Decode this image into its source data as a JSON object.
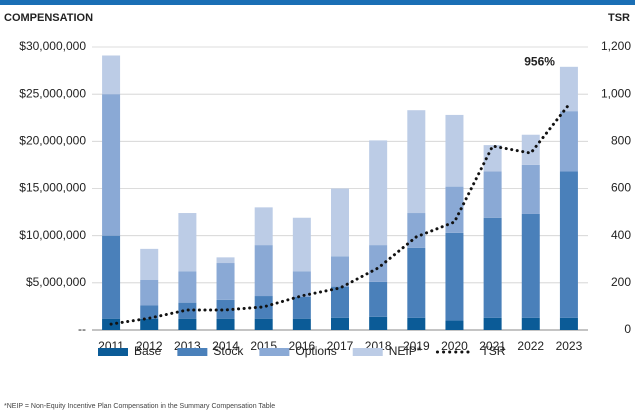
{
  "chart_data": {
    "type": "stacked_bar_line",
    "y_axis_title": "COMPENSATION",
    "y2_axis_title": "TSR",
    "categories": [
      "2011",
      "2012",
      "2013",
      "2014",
      "2015",
      "2016",
      "2017",
      "2018",
      "2019",
      "2020",
      "2021",
      "2022",
      "2023"
    ],
    "series": [
      {
        "name": "Base",
        "color": "#0b5b97",
        "values": [
          1200000,
          1200000,
          1200000,
          1200000,
          1200000,
          1200000,
          1300000,
          1400000,
          1300000,
          1000000,
          1300000,
          1300000,
          1300000
        ]
      },
      {
        "name": "Stock",
        "color": "#4a80ba",
        "values": [
          8800000,
          1400000,
          1700000,
          2000000,
          2400000,
          2300000,
          3300000,
          3700000,
          7400000,
          9300000,
          10600000,
          11000000,
          15500000
        ]
      },
      {
        "name": "Options",
        "color": "#8aa9d5",
        "values": [
          15000000,
          2700000,
          3300000,
          3900000,
          5400000,
          2700000,
          3200000,
          3900000,
          3700000,
          4900000,
          4900000,
          5200000,
          6400000
        ]
      },
      {
        "name": "NEIP*",
        "color": "#bccce6",
        "values": [
          4100000,
          3300000,
          6200000,
          600000,
          4000000,
          5700000,
          7200000,
          11100000,
          10900000,
          7600000,
          2800000,
          3200000,
          4700000
        ]
      },
      {
        "name": "TSR",
        "type": "line",
        "axis": "y2",
        "color": "#111111",
        "values": [
          25,
          50,
          85,
          85,
          98,
          145,
          178,
          263,
          395,
          458,
          780,
          750,
          956
        ]
      }
    ],
    "annotation": "956%",
    "ylim": [
      0,
      30000000
    ],
    "yticks": [
      {
        "value": 0,
        "label": "--"
      },
      {
        "value": 5000000,
        "label": "$5,000,000"
      },
      {
        "value": 10000000,
        "label": "$10,000,000"
      },
      {
        "value": 15000000,
        "label": "$15,000,000"
      },
      {
        "value": 20000000,
        "label": "$20,000,000"
      },
      {
        "value": 25000000,
        "label": "$25,000,000"
      },
      {
        "value": 30000000,
        "label": "$30,000,000"
      }
    ],
    "y2lim": [
      0,
      1200
    ],
    "y2ticks": [
      0,
      200,
      400,
      600,
      800,
      {
        "value": 1000,
        "label": "1,000"
      },
      {
        "value": 1200,
        "label": "1,200"
      }
    ],
    "grid": true,
    "footnote": "*NEIP = Non-Equity Incentive Plan Compensation in the Summary Compensation Table"
  }
}
